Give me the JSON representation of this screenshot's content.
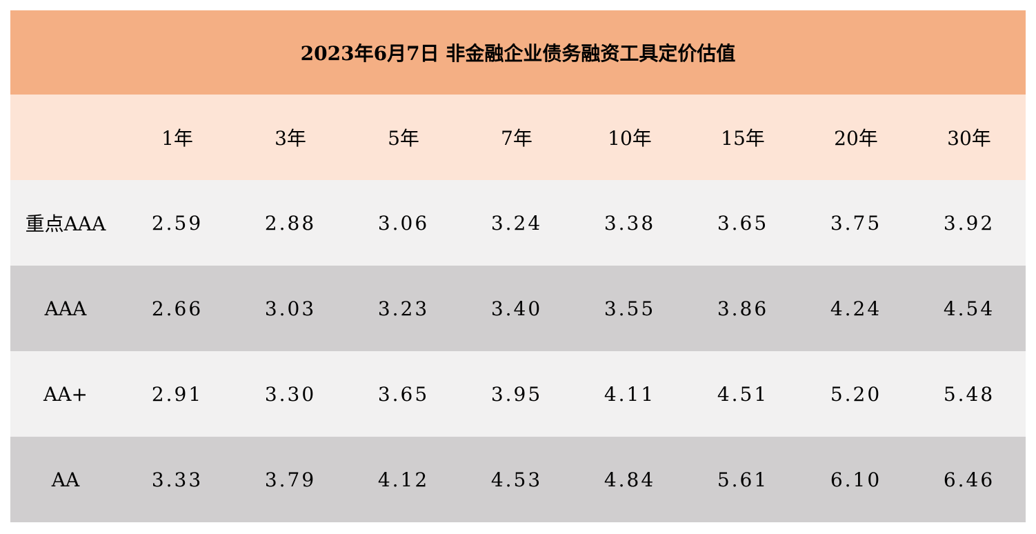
{
  "colors": {
    "title_bg": "#F4AF84",
    "header_bg": "#FDE4D6",
    "row_light": "#F2F1F1",
    "row_dark": "#D0CECF"
  },
  "chart_data": {
    "type": "table",
    "title": "2023年6月7日  非金融企业债务融资工具定价估值",
    "columns": [
      "",
      "1年",
      "3年",
      "5年",
      "7年",
      "10年",
      "15年",
      "20年",
      "30年"
    ],
    "rows": [
      {
        "label": "重点AAA",
        "values": [
          "2.59",
          "2.88",
          "3.06",
          "3.24",
          "3.38",
          "3.65",
          "3.75",
          "3.92"
        ]
      },
      {
        "label": "AAA",
        "values": [
          "2.66",
          "3.03",
          "3.23",
          "3.40",
          "3.55",
          "3.86",
          "4.24",
          "4.54"
        ]
      },
      {
        "label": "AA+",
        "values": [
          "2.91",
          "3.30",
          "3.65",
          "3.95",
          "4.11",
          "4.51",
          "5.20",
          "5.48"
        ]
      },
      {
        "label": "AA",
        "values": [
          "3.33",
          "3.79",
          "4.12",
          "4.53",
          "4.84",
          "5.61",
          "6.10",
          "6.46"
        ]
      }
    ]
  }
}
